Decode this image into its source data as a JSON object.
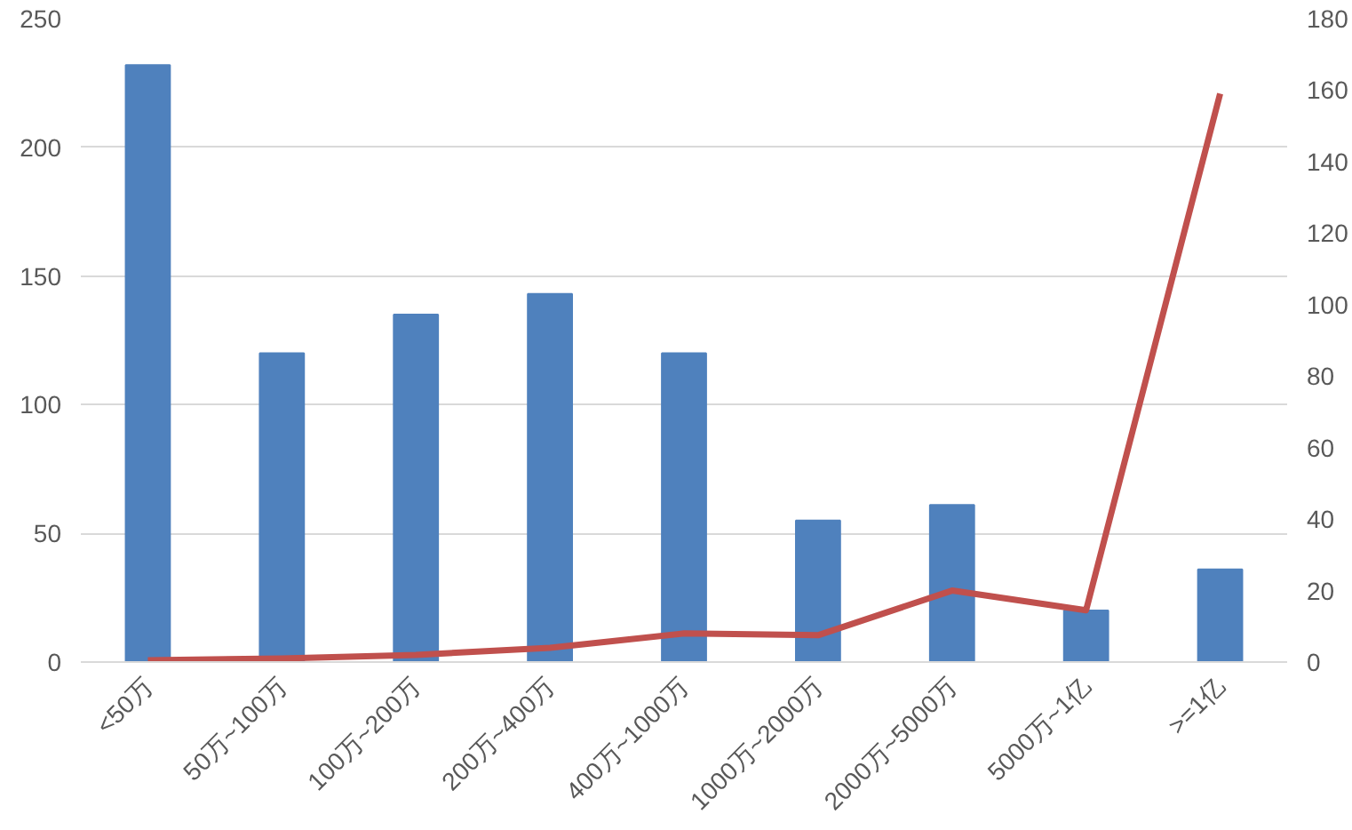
{
  "chart_data": {
    "type": "bar",
    "categories": [
      "<50万",
      "50万~100万",
      "100万~200万",
      "200万~400万",
      "400万~1000万",
      "1000万~2000万",
      "2000万~5000万",
      "5000万~1亿",
      ">=1亿"
    ],
    "series": [
      {
        "color": "#4f81bd",
        "values": [
          232,
          120,
          135,
          143,
          120,
          55,
          61,
          20,
          36
        ]
      },
      {
        "type": "line",
        "axis": "y2",
        "color": "#c0504d",
        "values": [
          0.5,
          1,
          2,
          4,
          8,
          7.5,
          20,
          14.5,
          159
        ]
      }
    ],
    "ylim": [
      0,
      250
    ],
    "yticks": [
      0,
      50,
      100,
      150,
      200,
      250
    ],
    "y2lim": [
      0,
      180
    ],
    "y2ticks": [
      0,
      20,
      40,
      60,
      80,
      100,
      120,
      140,
      160,
      180
    ],
    "grid": "y"
  }
}
